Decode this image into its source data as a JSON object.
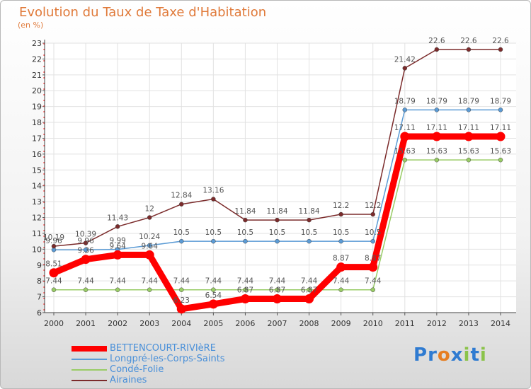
{
  "header": {
    "title": "Evolution du Taux de Taxe d'Habitation",
    "unit": "(en %)"
  },
  "logo": {
    "text": "Proxiti",
    "letters": [
      "P",
      "r",
      "o",
      "x",
      "i",
      "t",
      "i"
    ],
    "colors": [
      "#2f7bd1",
      "#2f7bd1",
      "#e67e22",
      "#2f7bd1",
      "#8bc34a",
      "#2f7bd1",
      "#8bc34a"
    ]
  },
  "chart_data": {
    "type": "line",
    "x": [
      "2000",
      "2001",
      "2002",
      "2003",
      "2004",
      "2005",
      "2006",
      "2007",
      "2008",
      "2009",
      "2010",
      "2011",
      "2012",
      "2013",
      "2014"
    ],
    "ylim": [
      6,
      23
    ],
    "yticks": [
      "6",
      "7",
      "8",
      "9",
      "10",
      "11",
      "12",
      "13",
      "14",
      "15",
      "16",
      "17",
      "18",
      "19",
      "20",
      "21",
      "22",
      "23"
    ],
    "grid": true,
    "legend_position": "bottom-left",
    "series": [
      {
        "name": "BETTENCOURT-RIVIèRE",
        "color": "#ff0000",
        "values": [
          8.51,
          9.36,
          9.64,
          9.64,
          6.23,
          6.54,
          6.87,
          6.87,
          6.87,
          8.87,
          8.87,
          17.11,
          17.11,
          17.11,
          17.11
        ],
        "labels": [
          "8.51",
          "9.36",
          "9.64",
          "9.64",
          "6.23",
          "6.54",
          "6.87",
          "6.87",
          "6.87",
          "8.87",
          "8.87",
          "17.11",
          "17.11",
          "17.11",
          "17.11"
        ]
      },
      {
        "name": "Longpré-les-Corps-Saints",
        "color": "#5b9bd5",
        "values": [
          9.96,
          9.96,
          9.99,
          10.24,
          10.5,
          10.5,
          10.5,
          10.5,
          10.5,
          10.5,
          10.5,
          18.79,
          18.79,
          18.79,
          18.79
        ],
        "labels": [
          "9.96",
          "9.96",
          "9.99",
          "10.24",
          "10.5",
          "10.5",
          "10.5",
          "10.5",
          "10.5",
          "10.5",
          "10.5",
          "18.79",
          "18.79",
          "18.79",
          "18.79"
        ]
      },
      {
        "name": "Condé-Folie",
        "color": "#99cc66",
        "values": [
          7.44,
          7.44,
          7.44,
          7.44,
          7.44,
          7.44,
          7.44,
          7.44,
          7.44,
          7.44,
          7.44,
          15.63,
          15.63,
          15.63,
          15.63
        ],
        "labels": [
          "7.44",
          "7.44",
          "7.44",
          "7.44",
          "7.44",
          "7.44",
          "7.44",
          "7.44",
          "7.44",
          "7.44",
          "7.44",
          "15.63",
          "15.63",
          "15.63",
          "15.63"
        ]
      },
      {
        "name": "Airaines",
        "color": "#7b2b2b",
        "values": [
          10.19,
          10.39,
          11.43,
          12,
          12.84,
          13.16,
          11.84,
          11.84,
          11.84,
          12.2,
          12.2,
          21.42,
          22.6,
          22.6,
          22.6
        ],
        "labels": [
          "10.19",
          "10.39",
          "11.43",
          "12",
          "12.84",
          "13.16",
          "11.84",
          "11.84",
          "11.84",
          "12.2",
          "12.2",
          "21.42",
          "22.6",
          "22.6",
          "22.6"
        ]
      }
    ]
  }
}
